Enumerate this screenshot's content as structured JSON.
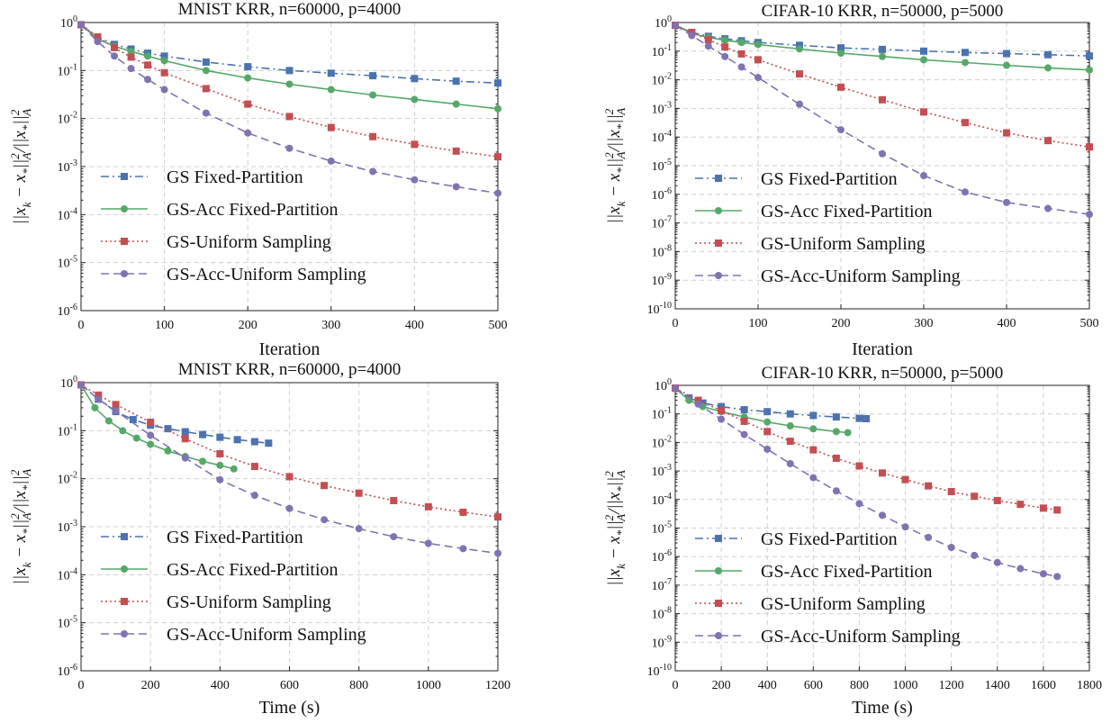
{
  "figure": {
    "colors": {
      "gs_fixed": "#4c72b0",
      "gs_acc_fixed": "#55a868",
      "gs_uniform": "#c44e52",
      "gs_acc_uniform": "#8172b2",
      "grid": "#d0d0d0"
    }
  },
  "chart_data": [
    {
      "type": "line",
      "title": "MNIST KRR, n=60000, p=4000",
      "xlabel": "Iteration",
      "ylabel": "||x_k − x_*||_A^2/||x_*||_A^2",
      "yscale": "log",
      "xlim": [
        0,
        500
      ],
      "ylim_exp": [
        -6,
        0
      ],
      "xticks": [
        0,
        100,
        200,
        300,
        400,
        500
      ],
      "yticks_exp": [
        0,
        -1,
        -2,
        -3,
        -4,
        -5,
        -6
      ],
      "legend_position": "lower-left",
      "grid": true,
      "series": [
        {
          "name": "GS Fixed-Partition",
          "color_key": "gs_fixed",
          "marker": "square",
          "dash": "dashdot",
          "x": [
            0,
            20,
            40,
            60,
            80,
            100,
            150,
            200,
            250,
            300,
            350,
            400,
            450,
            500
          ],
          "y": [
            0.9,
            0.5,
            0.35,
            0.28,
            0.23,
            0.2,
            0.15,
            0.12,
            0.1,
            0.088,
            0.078,
            0.068,
            0.06,
            0.055
          ]
        },
        {
          "name": "GS-Acc Fixed-Partition",
          "color_key": "gs_acc_fixed",
          "marker": "circle",
          "dash": "solid",
          "x": [
            0,
            20,
            40,
            60,
            80,
            100,
            150,
            200,
            250,
            300,
            350,
            400,
            450,
            500
          ],
          "y": [
            0.9,
            0.45,
            0.32,
            0.25,
            0.2,
            0.16,
            0.1,
            0.07,
            0.052,
            0.04,
            0.031,
            0.025,
            0.02,
            0.016
          ]
        },
        {
          "name": "GS-Uniform Sampling",
          "color_key": "gs_uniform",
          "marker": "square",
          "dash": "dotted",
          "x": [
            0,
            20,
            40,
            60,
            80,
            100,
            150,
            200,
            250,
            300,
            350,
            400,
            450,
            500
          ],
          "y": [
            0.9,
            0.5,
            0.3,
            0.19,
            0.13,
            0.09,
            0.042,
            0.02,
            0.011,
            0.0065,
            0.0042,
            0.0029,
            0.0021,
            0.0016
          ]
        },
        {
          "name": "GS-Acc-Uniform Sampling",
          "color_key": "gs_acc_uniform",
          "marker": "circle",
          "dash": "dashed",
          "x": [
            0,
            20,
            40,
            60,
            80,
            100,
            150,
            200,
            250,
            300,
            350,
            400,
            450,
            500
          ],
          "y": [
            0.9,
            0.4,
            0.2,
            0.11,
            0.065,
            0.04,
            0.013,
            0.005,
            0.0024,
            0.0013,
            0.00079,
            0.00053,
            0.00038,
            0.00028
          ]
        }
      ]
    },
    {
      "type": "line",
      "title": "CIFAR-10 KRR, n=50000, p=5000",
      "xlabel": "Iteration",
      "ylabel": "||x_k − x_*||_A^2/||x_*||_A^2",
      "yscale": "log",
      "xlim": [
        0,
        500
      ],
      "ylim_exp": [
        -10,
        0
      ],
      "xticks": [
        0,
        100,
        200,
        300,
        400,
        500
      ],
      "yticks_exp": [
        0,
        -1,
        -2,
        -3,
        -4,
        -5,
        -6,
        -7,
        -8,
        -9,
        -10
      ],
      "legend_position": "lower-left",
      "grid": true,
      "series": [
        {
          "name": "GS Fixed-Partition",
          "color_key": "gs_fixed",
          "marker": "square",
          "dash": "dashdot",
          "x": [
            0,
            20,
            40,
            60,
            80,
            100,
            150,
            200,
            250,
            300,
            350,
            400,
            450,
            500
          ],
          "y": [
            0.8,
            0.45,
            0.33,
            0.27,
            0.23,
            0.2,
            0.16,
            0.13,
            0.115,
            0.1,
            0.09,
            0.082,
            0.075,
            0.068
          ]
        },
        {
          "name": "GS-Acc Fixed-Partition",
          "color_key": "gs_acc_fixed",
          "marker": "circle",
          "dash": "solid",
          "x": [
            0,
            20,
            40,
            60,
            80,
            100,
            150,
            200,
            250,
            300,
            350,
            400,
            450,
            500
          ],
          "y": [
            0.8,
            0.42,
            0.3,
            0.24,
            0.2,
            0.17,
            0.12,
            0.085,
            0.065,
            0.05,
            0.04,
            0.032,
            0.026,
            0.022
          ]
        },
        {
          "name": "GS-Uniform Sampling",
          "color_key": "gs_uniform",
          "marker": "square",
          "dash": "dotted",
          "x": [
            0,
            20,
            40,
            60,
            80,
            100,
            150,
            200,
            250,
            300,
            350,
            400,
            450,
            500
          ],
          "y": [
            0.8,
            0.45,
            0.25,
            0.14,
            0.08,
            0.05,
            0.016,
            0.0055,
            0.002,
            0.00075,
            0.00032,
            0.00014,
            7.5e-05,
            4.5e-05
          ]
        },
        {
          "name": "GS-Acc-Uniform Sampling",
          "color_key": "gs_acc_uniform",
          "marker": "circle",
          "dash": "dashed",
          "x": [
            0,
            20,
            40,
            60,
            80,
            100,
            150,
            200,
            250,
            300,
            350,
            400,
            450,
            500
          ],
          "y": [
            0.8,
            0.35,
            0.15,
            0.065,
            0.028,
            0.012,
            0.0014,
            0.00018,
            2.6e-05,
            4.5e-06,
            1.2e-06,
            5.2e-07,
            3.2e-07,
            2e-07
          ]
        }
      ]
    },
    {
      "type": "line",
      "title": "MNIST KRR, n=60000, p=4000",
      "xlabel": "Time (s)",
      "ylabel": "||x_k − x_*||_A^2/||x_*||_A^2",
      "yscale": "log",
      "xlim": [
        0,
        1200
      ],
      "ylim_exp": [
        -6,
        0
      ],
      "xticks": [
        0,
        200,
        400,
        600,
        800,
        1000,
        1200
      ],
      "yticks_exp": [
        0,
        -1,
        -2,
        -3,
        -4,
        -5,
        -6
      ],
      "legend_position": "lower-left",
      "grid": true,
      "series": [
        {
          "name": "GS Fixed-Partition",
          "color_key": "gs_fixed",
          "marker": "square",
          "dash": "dashdot",
          "x": [
            0,
            50,
            100,
            150,
            200,
            250,
            300,
            350,
            400,
            450,
            500,
            540
          ],
          "y": [
            0.9,
            0.45,
            0.25,
            0.17,
            0.13,
            0.11,
            0.095,
            0.083,
            0.073,
            0.065,
            0.059,
            0.055
          ]
        },
        {
          "name": "GS-Acc Fixed-Partition",
          "color_key": "gs_acc_fixed",
          "marker": "circle",
          "dash": "solid",
          "x": [
            0,
            40,
            80,
            120,
            160,
            200,
            250,
            300,
            350,
            400,
            440
          ],
          "y": [
            0.9,
            0.3,
            0.16,
            0.1,
            0.07,
            0.052,
            0.038,
            0.029,
            0.023,
            0.019,
            0.016
          ]
        },
        {
          "name": "GS-Uniform Sampling",
          "color_key": "gs_uniform",
          "marker": "square",
          "dash": "dotted",
          "x": [
            0,
            50,
            100,
            200,
            300,
            400,
            500,
            600,
            700,
            800,
            900,
            1000,
            1100,
            1200
          ],
          "y": [
            0.9,
            0.55,
            0.35,
            0.15,
            0.068,
            0.033,
            0.018,
            0.011,
            0.0072,
            0.005,
            0.0035,
            0.0026,
            0.002,
            0.0016
          ]
        },
        {
          "name": "GS-Acc-Uniform Sampling",
          "color_key": "gs_acc_uniform",
          "marker": "circle",
          "dash": "dashed",
          "x": [
            0,
            50,
            100,
            200,
            300,
            400,
            500,
            600,
            700,
            800,
            900,
            1000,
            1100,
            1200
          ],
          "y": [
            0.9,
            0.45,
            0.26,
            0.08,
            0.027,
            0.0095,
            0.0045,
            0.0024,
            0.0014,
            0.00091,
            0.00062,
            0.00045,
            0.00035,
            0.00028
          ]
        }
      ]
    },
    {
      "type": "line",
      "title": "CIFAR-10 KRR, n=50000, p=5000",
      "xlabel": "Time (s)",
      "ylabel": "||x_k − x_*||_A^2/||x_*||_A^2",
      "yscale": "log",
      "xlim": [
        0,
        1800
      ],
      "ylim_exp": [
        -10,
        0
      ],
      "xticks": [
        0,
        200,
        400,
        600,
        800,
        1000,
        1200,
        1400,
        1600,
        1800
      ],
      "yticks_exp": [
        0,
        -1,
        -2,
        -3,
        -4,
        -5,
        -6,
        -7,
        -8,
        -9,
        -10
      ],
      "legend_position": "lower-left",
      "grid": true,
      "series": [
        {
          "name": "GS Fixed-Partition",
          "color_key": "gs_fixed",
          "marker": "square",
          "dash": "dashdot",
          "x": [
            0,
            60,
            120,
            200,
            300,
            400,
            500,
            600,
            700,
            800,
            830
          ],
          "y": [
            0.8,
            0.36,
            0.24,
            0.18,
            0.14,
            0.12,
            0.1,
            0.088,
            0.078,
            0.07,
            0.068
          ]
        },
        {
          "name": "GS-Acc Fixed-Partition",
          "color_key": "gs_acc_fixed",
          "marker": "circle",
          "dash": "solid",
          "x": [
            0,
            60,
            120,
            200,
            300,
            400,
            500,
            600,
            700,
            750
          ],
          "y": [
            0.8,
            0.3,
            0.18,
            0.12,
            0.078,
            0.052,
            0.038,
            0.03,
            0.024,
            0.022
          ]
        },
        {
          "name": "GS-Uniform Sampling",
          "color_key": "gs_uniform",
          "marker": "square",
          "dash": "dotted",
          "x": [
            0,
            100,
            200,
            300,
            400,
            500,
            600,
            700,
            800,
            900,
            1000,
            1100,
            1200,
            1300,
            1400,
            1500,
            1600,
            1660
          ],
          "y": [
            0.8,
            0.3,
            0.13,
            0.055,
            0.024,
            0.011,
            0.0055,
            0.0028,
            0.0015,
            0.00085,
            0.0005,
            0.0003,
            0.00019,
            0.00013,
            9.2e-05,
            6.8e-05,
            5e-05,
            4.3e-05
          ]
        },
        {
          "name": "GS-Acc-Uniform Sampling",
          "color_key": "gs_acc_uniform",
          "marker": "circle",
          "dash": "dashed",
          "x": [
            0,
            100,
            200,
            300,
            400,
            500,
            600,
            700,
            800,
            900,
            1000,
            1100,
            1200,
            1300,
            1400,
            1500,
            1600,
            1660
          ],
          "y": [
            0.8,
            0.22,
            0.065,
            0.019,
            0.0058,
            0.0018,
            0.00058,
            0.0002,
            7.2e-05,
            2.8e-05,
            1.1e-05,
            4.7e-06,
            2.1e-06,
            1.1e-06,
            6.2e-07,
            3.8e-07,
            2.5e-07,
            2e-07
          ]
        }
      ]
    }
  ]
}
